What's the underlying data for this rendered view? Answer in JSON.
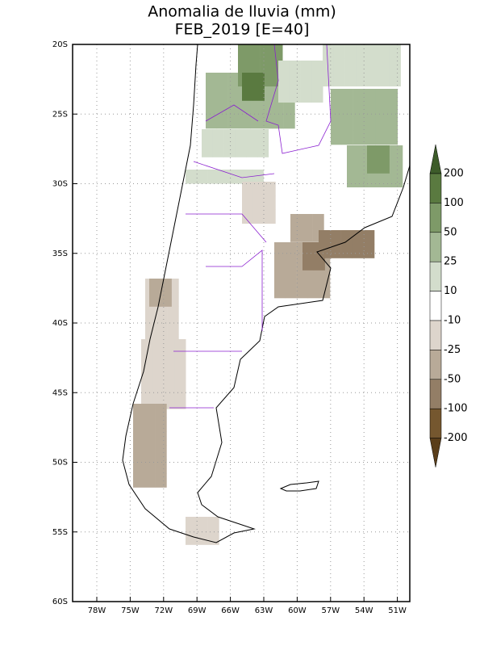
{
  "title": [
    "Anomalia de lluvia (mm)",
    "FEB_2019 [E=40]"
  ],
  "lat_labels": [
    "20S",
    "25S",
    "30S",
    "35S",
    "40S",
    "45S",
    "50S",
    "55S",
    "60S"
  ],
  "lon_labels": [
    "78W",
    "75W",
    "72W",
    "69W",
    "66W",
    "63W",
    "60W",
    "57W",
    "54W",
    "51W"
  ],
  "colorbar": {
    "levels": [
      "200",
      "100",
      "50",
      "25",
      "10",
      "-10",
      "-25",
      "-50",
      "-100",
      "-200"
    ],
    "colors": [
      "#3d5c2a",
      "#5a7a40",
      "#7e9a68",
      "#a3b894",
      "#d3ddcc",
      "#ffffff",
      "#ddd5cc",
      "#b8aa98",
      "#937e66",
      "#75572f",
      "#5a3e1a"
    ]
  }
}
